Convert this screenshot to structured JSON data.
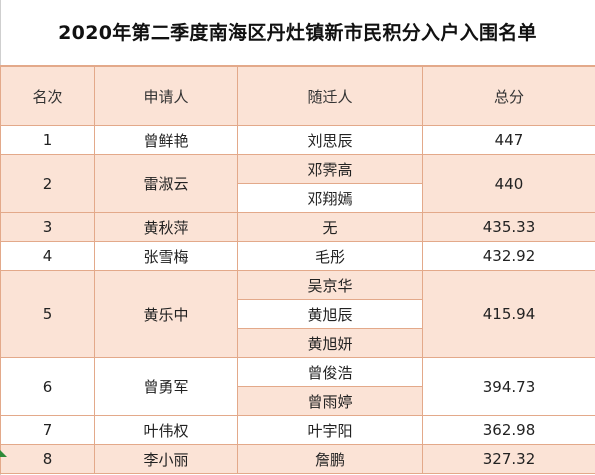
{
  "title": "2020年第二季度南海区丹灶镇新市民积分入户入围名单",
  "headers": {
    "rank": "名次",
    "applicant": "申请人",
    "family": "随迁人",
    "score": "总分"
  },
  "rows": [
    {
      "rank": "1",
      "applicant": "曾鲜艳",
      "family": [
        "刘思辰"
      ],
      "score": "447"
    },
    {
      "rank": "2",
      "applicant": "雷淑云",
      "family": [
        "邓霁高",
        "邓翔嫣"
      ],
      "score": "440"
    },
    {
      "rank": "3",
      "applicant": "黄秋萍",
      "family": [
        "无"
      ],
      "score": "435.33"
    },
    {
      "rank": "4",
      "applicant": "张雪梅",
      "family": [
        "毛彤"
      ],
      "score": "432.92"
    },
    {
      "rank": "5",
      "applicant": "黄乐中",
      "family": [
        "吴京华",
        "黄旭辰",
        "黄旭妍"
      ],
      "score": "415.94"
    },
    {
      "rank": "6",
      "applicant": "曾勇军",
      "family": [
        "曾俊浩",
        "曾雨婷"
      ],
      "score": "394.73"
    },
    {
      "rank": "7",
      "applicant": "叶伟权",
      "family": [
        "叶宇阳"
      ],
      "score": "362.98"
    },
    {
      "rank": "8",
      "applicant": "李小丽",
      "family": [
        "詹鹏"
      ],
      "score": "327.32"
    }
  ],
  "colors": {
    "header_fill": "#fbe3d6",
    "band_fill": "#fbe3d6",
    "border": "#e3a98a"
  }
}
